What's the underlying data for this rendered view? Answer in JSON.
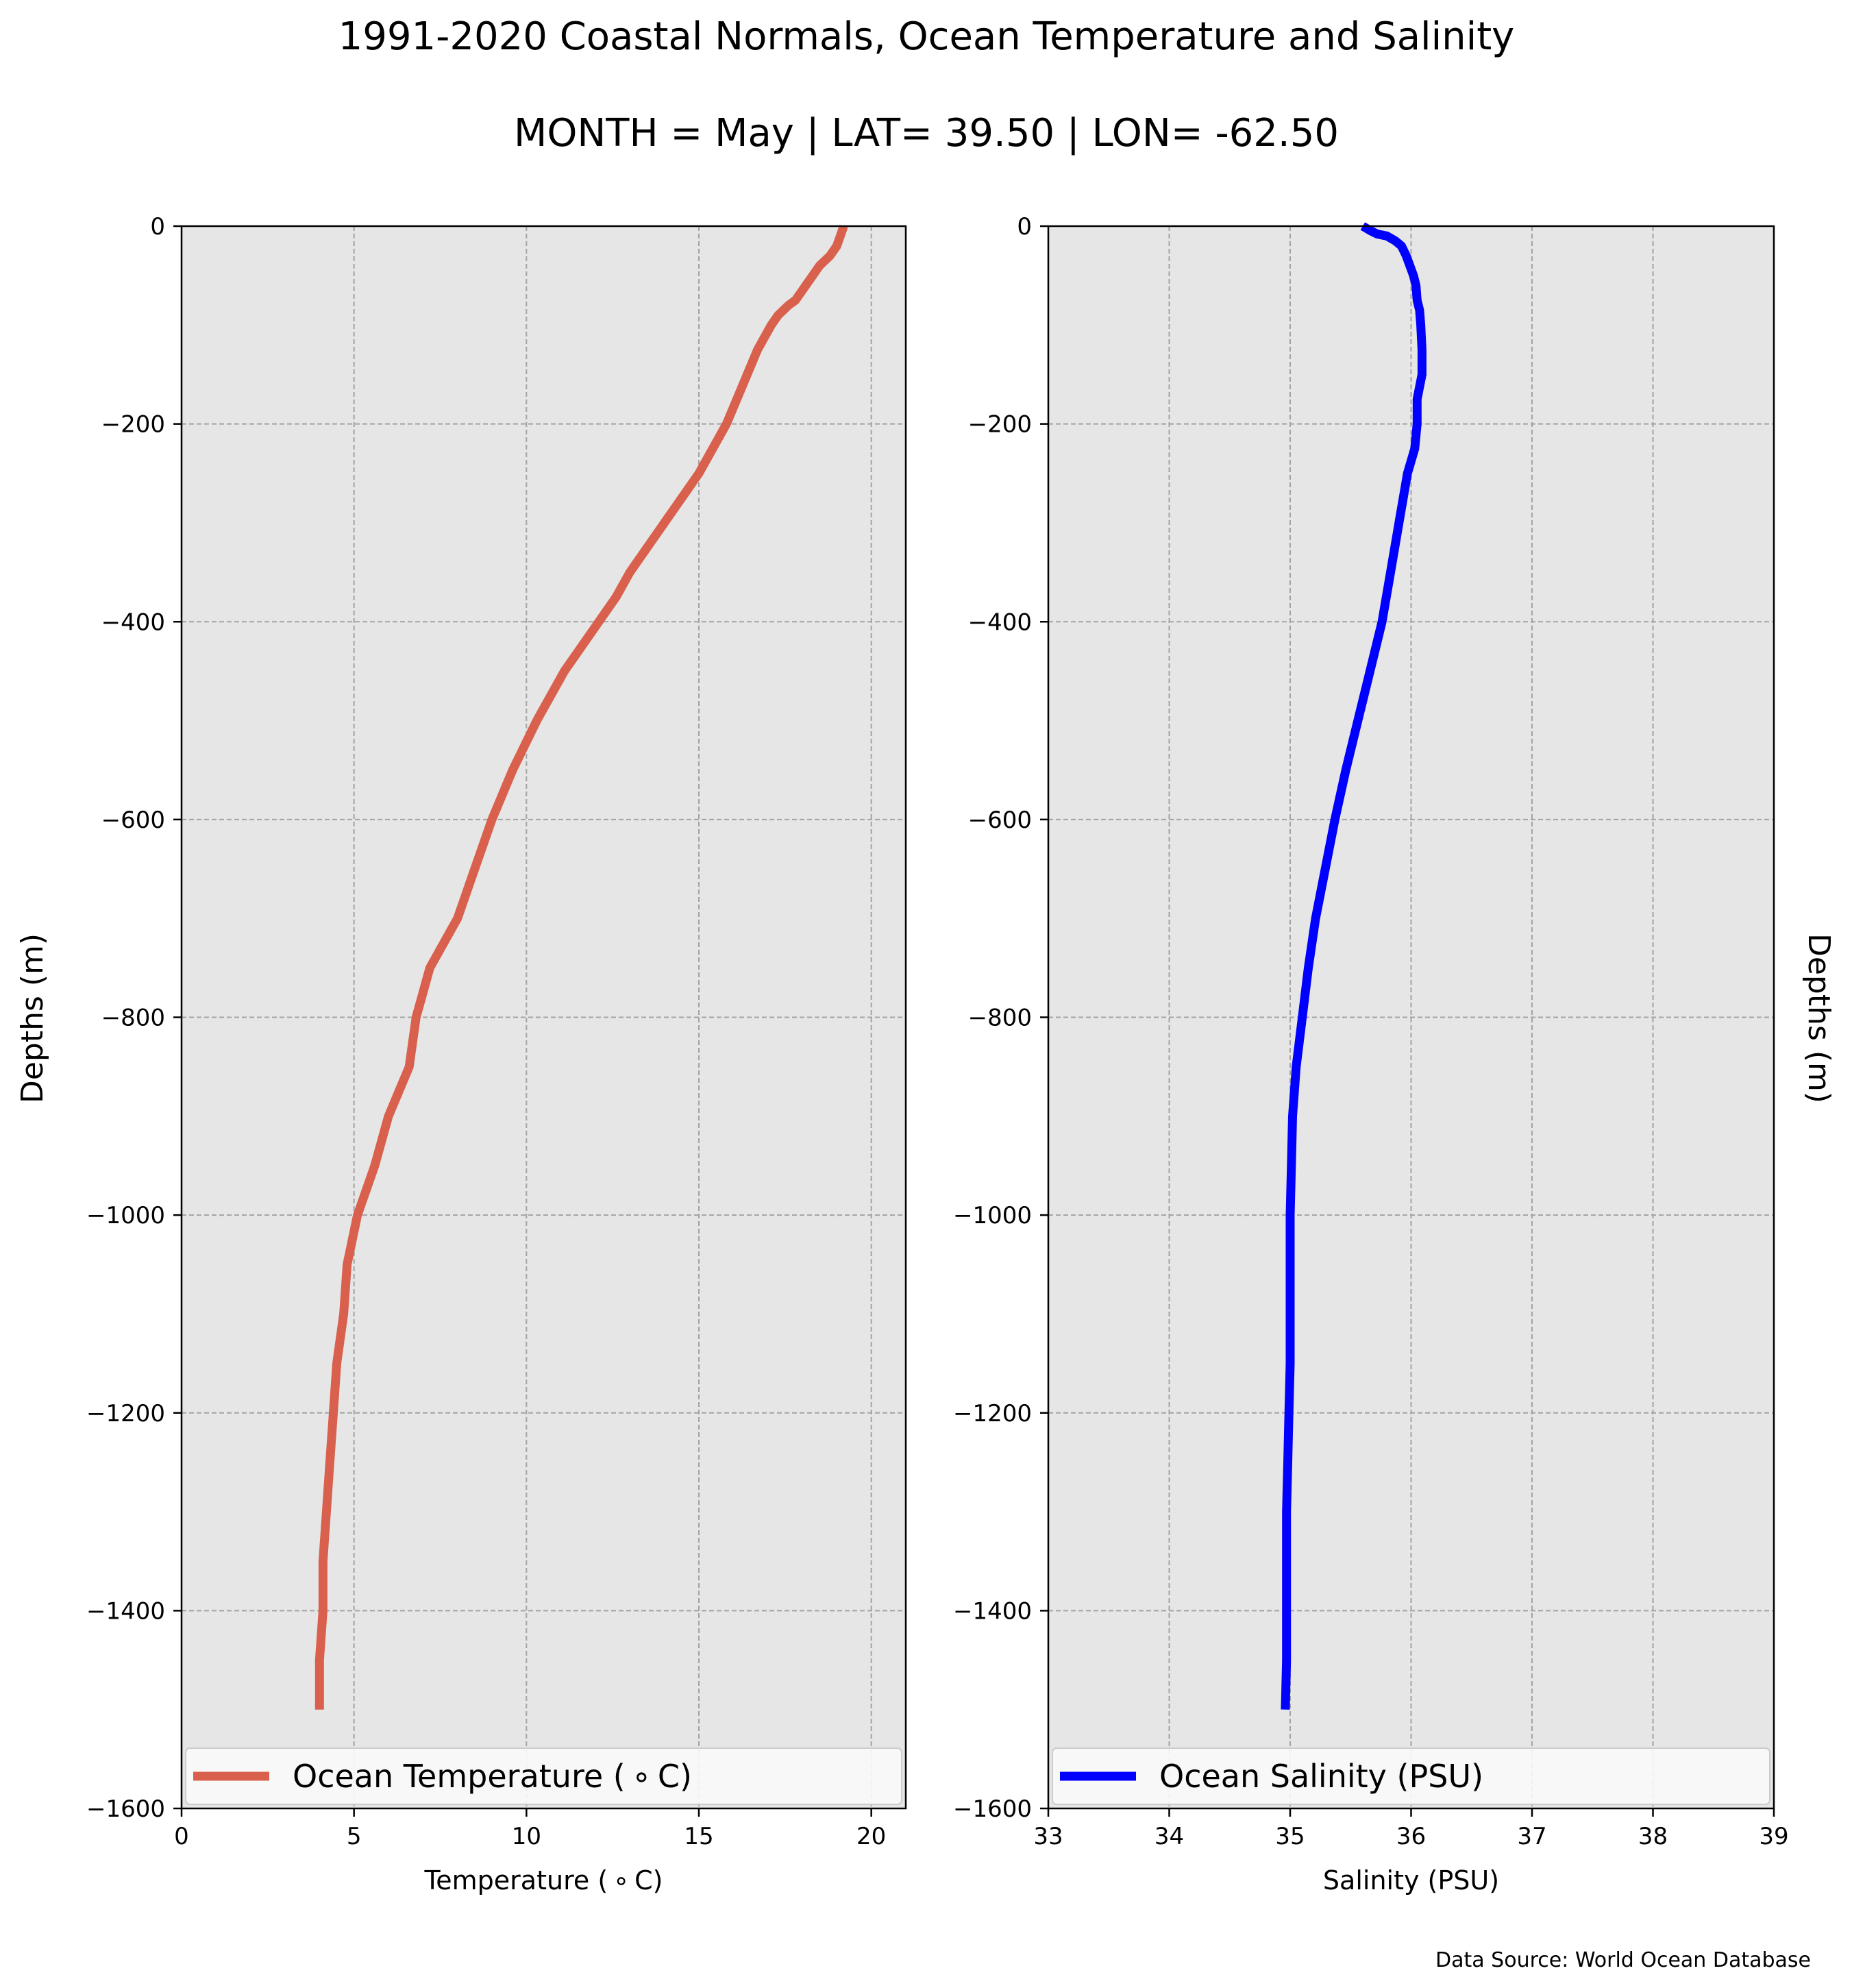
{
  "figure": {
    "title": "1991-2020 Coastal Normals, Ocean Temperature and Salinity",
    "subtitle": "MONTH = May | LAT= 39.50 | LON= -62.50",
    "source": "Data Source: World Ocean Database"
  },
  "chart_data": [
    {
      "type": "line",
      "xlabel": "Temperature ($^\\circ$C)",
      "xlabel_display": "Temperature ( ∘ C)",
      "ylabel": "Depths (m)",
      "xlim": [
        0,
        21
      ],
      "ylim": [
        -1600,
        0
      ],
      "xticks": [
        0,
        5,
        10,
        15,
        20
      ],
      "yticks": [
        0,
        -200,
        -400,
        -600,
        -800,
        -1000,
        -1200,
        -1400,
        -1600
      ],
      "xtick_labels": [
        "0",
        "5",
        "10",
        "15",
        "20"
      ],
      "ytick_labels": [
        "0",
        "−200",
        "−400",
        "−600",
        "−800",
        "−1000",
        "−1200",
        "−1400",
        "−1600"
      ],
      "grid": true,
      "legend_position": "lower-center",
      "background": "#e6e6e6",
      "series": [
        {
          "name": "Ocean Temperature ( ∘ C)",
          "color": "#d9604c",
          "points": [
            [
              19.2,
              0
            ],
            [
              19.1,
              -10
            ],
            [
              19.0,
              -20
            ],
            [
              18.8,
              -30
            ],
            [
              18.5,
              -40
            ],
            [
              18.3,
              -50
            ],
            [
              18.1,
              -60
            ],
            [
              18.0,
              -65
            ],
            [
              17.8,
              -75
            ],
            [
              17.6,
              -80
            ],
            [
              17.3,
              -90
            ],
            [
              17.1,
              -100
            ],
            [
              16.7,
              -125
            ],
            [
              16.4,
              -150
            ],
            [
              15.8,
              -200
            ],
            [
              15.0,
              -250
            ],
            [
              14.0,
              -300
            ],
            [
              13.0,
              -350
            ],
            [
              12.6,
              -375
            ],
            [
              12.1,
              -400
            ],
            [
              11.1,
              -450
            ],
            [
              10.3,
              -500
            ],
            [
              9.6,
              -550
            ],
            [
              9.0,
              -600
            ],
            [
              8.5,
              -650
            ],
            [
              8.0,
              -700
            ],
            [
              7.2,
              -750
            ],
            [
              6.8,
              -800
            ],
            [
              6.6,
              -850
            ],
            [
              6.0,
              -900
            ],
            [
              5.6,
              -950
            ],
            [
              5.1,
              -1000
            ],
            [
              4.8,
              -1050
            ],
            [
              4.7,
              -1100
            ],
            [
              4.5,
              -1150
            ],
            [
              4.4,
              -1200
            ],
            [
              4.3,
              -1250
            ],
            [
              4.2,
              -1300
            ],
            [
              4.1,
              -1350
            ],
            [
              4.1,
              -1400
            ],
            [
              4.0,
              -1450
            ],
            [
              4.0,
              -1500
            ]
          ]
        }
      ]
    },
    {
      "type": "line",
      "xlabel": "Salinity (PSU)",
      "ylabel": "Depths (m)",
      "xlim": [
        33,
        39
      ],
      "ylim": [
        -1600,
        0
      ],
      "xticks": [
        33,
        34,
        35,
        36,
        37,
        38,
        39
      ],
      "yticks": [
        0,
        -200,
        -400,
        -600,
        -800,
        -1000,
        -1200,
        -1400,
        -1600
      ],
      "xtick_labels": [
        "33",
        "34",
        "35",
        "36",
        "37",
        "38",
        "39"
      ],
      "ytick_labels": [
        "0",
        "−200",
        "−400",
        "−600",
        "−800",
        "−1000",
        "−1200",
        "−1400",
        "−1600"
      ],
      "grid": true,
      "legend_position": "lower-center",
      "background": "#e6e6e6",
      "series": [
        {
          "name": "Ocean Salinity (PSU)",
          "color": "#0000ff",
          "points": [
            [
              35.6,
              0
            ],
            [
              35.67,
              -5
            ],
            [
              35.72,
              -8
            ],
            [
              35.8,
              -10
            ],
            [
              35.87,
              -15
            ],
            [
              35.92,
              -20
            ],
            [
              35.96,
              -30
            ],
            [
              35.99,
              -40
            ],
            [
              36.02,
              -50
            ],
            [
              36.04,
              -60
            ],
            [
              36.05,
              -75
            ],
            [
              36.07,
              -85
            ],
            [
              36.08,
              -100
            ],
            [
              36.09,
              -125
            ],
            [
              36.09,
              -150
            ],
            [
              36.05,
              -175
            ],
            [
              36.05,
              -200
            ],
            [
              36.03,
              -225
            ],
            [
              35.97,
              -250
            ],
            [
              35.9,
              -300
            ],
            [
              35.83,
              -350
            ],
            [
              35.76,
              -400
            ],
            [
              35.66,
              -450
            ],
            [
              35.56,
              -500
            ],
            [
              35.46,
              -550
            ],
            [
              35.37,
              -600
            ],
            [
              35.29,
              -650
            ],
            [
              35.21,
              -700
            ],
            [
              35.15,
              -750
            ],
            [
              35.1,
              -800
            ],
            [
              35.05,
              -850
            ],
            [
              35.02,
              -900
            ],
            [
              35.01,
              -950
            ],
            [
              35.0,
              -1000
            ],
            [
              35.0,
              -1050
            ],
            [
              35.0,
              -1100
            ],
            [
              35.0,
              -1150
            ],
            [
              34.99,
              -1200
            ],
            [
              34.98,
              -1250
            ],
            [
              34.97,
              -1300
            ],
            [
              34.97,
              -1350
            ],
            [
              34.97,
              -1400
            ],
            [
              34.97,
              -1450
            ],
            [
              34.96,
              -1500
            ]
          ]
        }
      ]
    }
  ]
}
